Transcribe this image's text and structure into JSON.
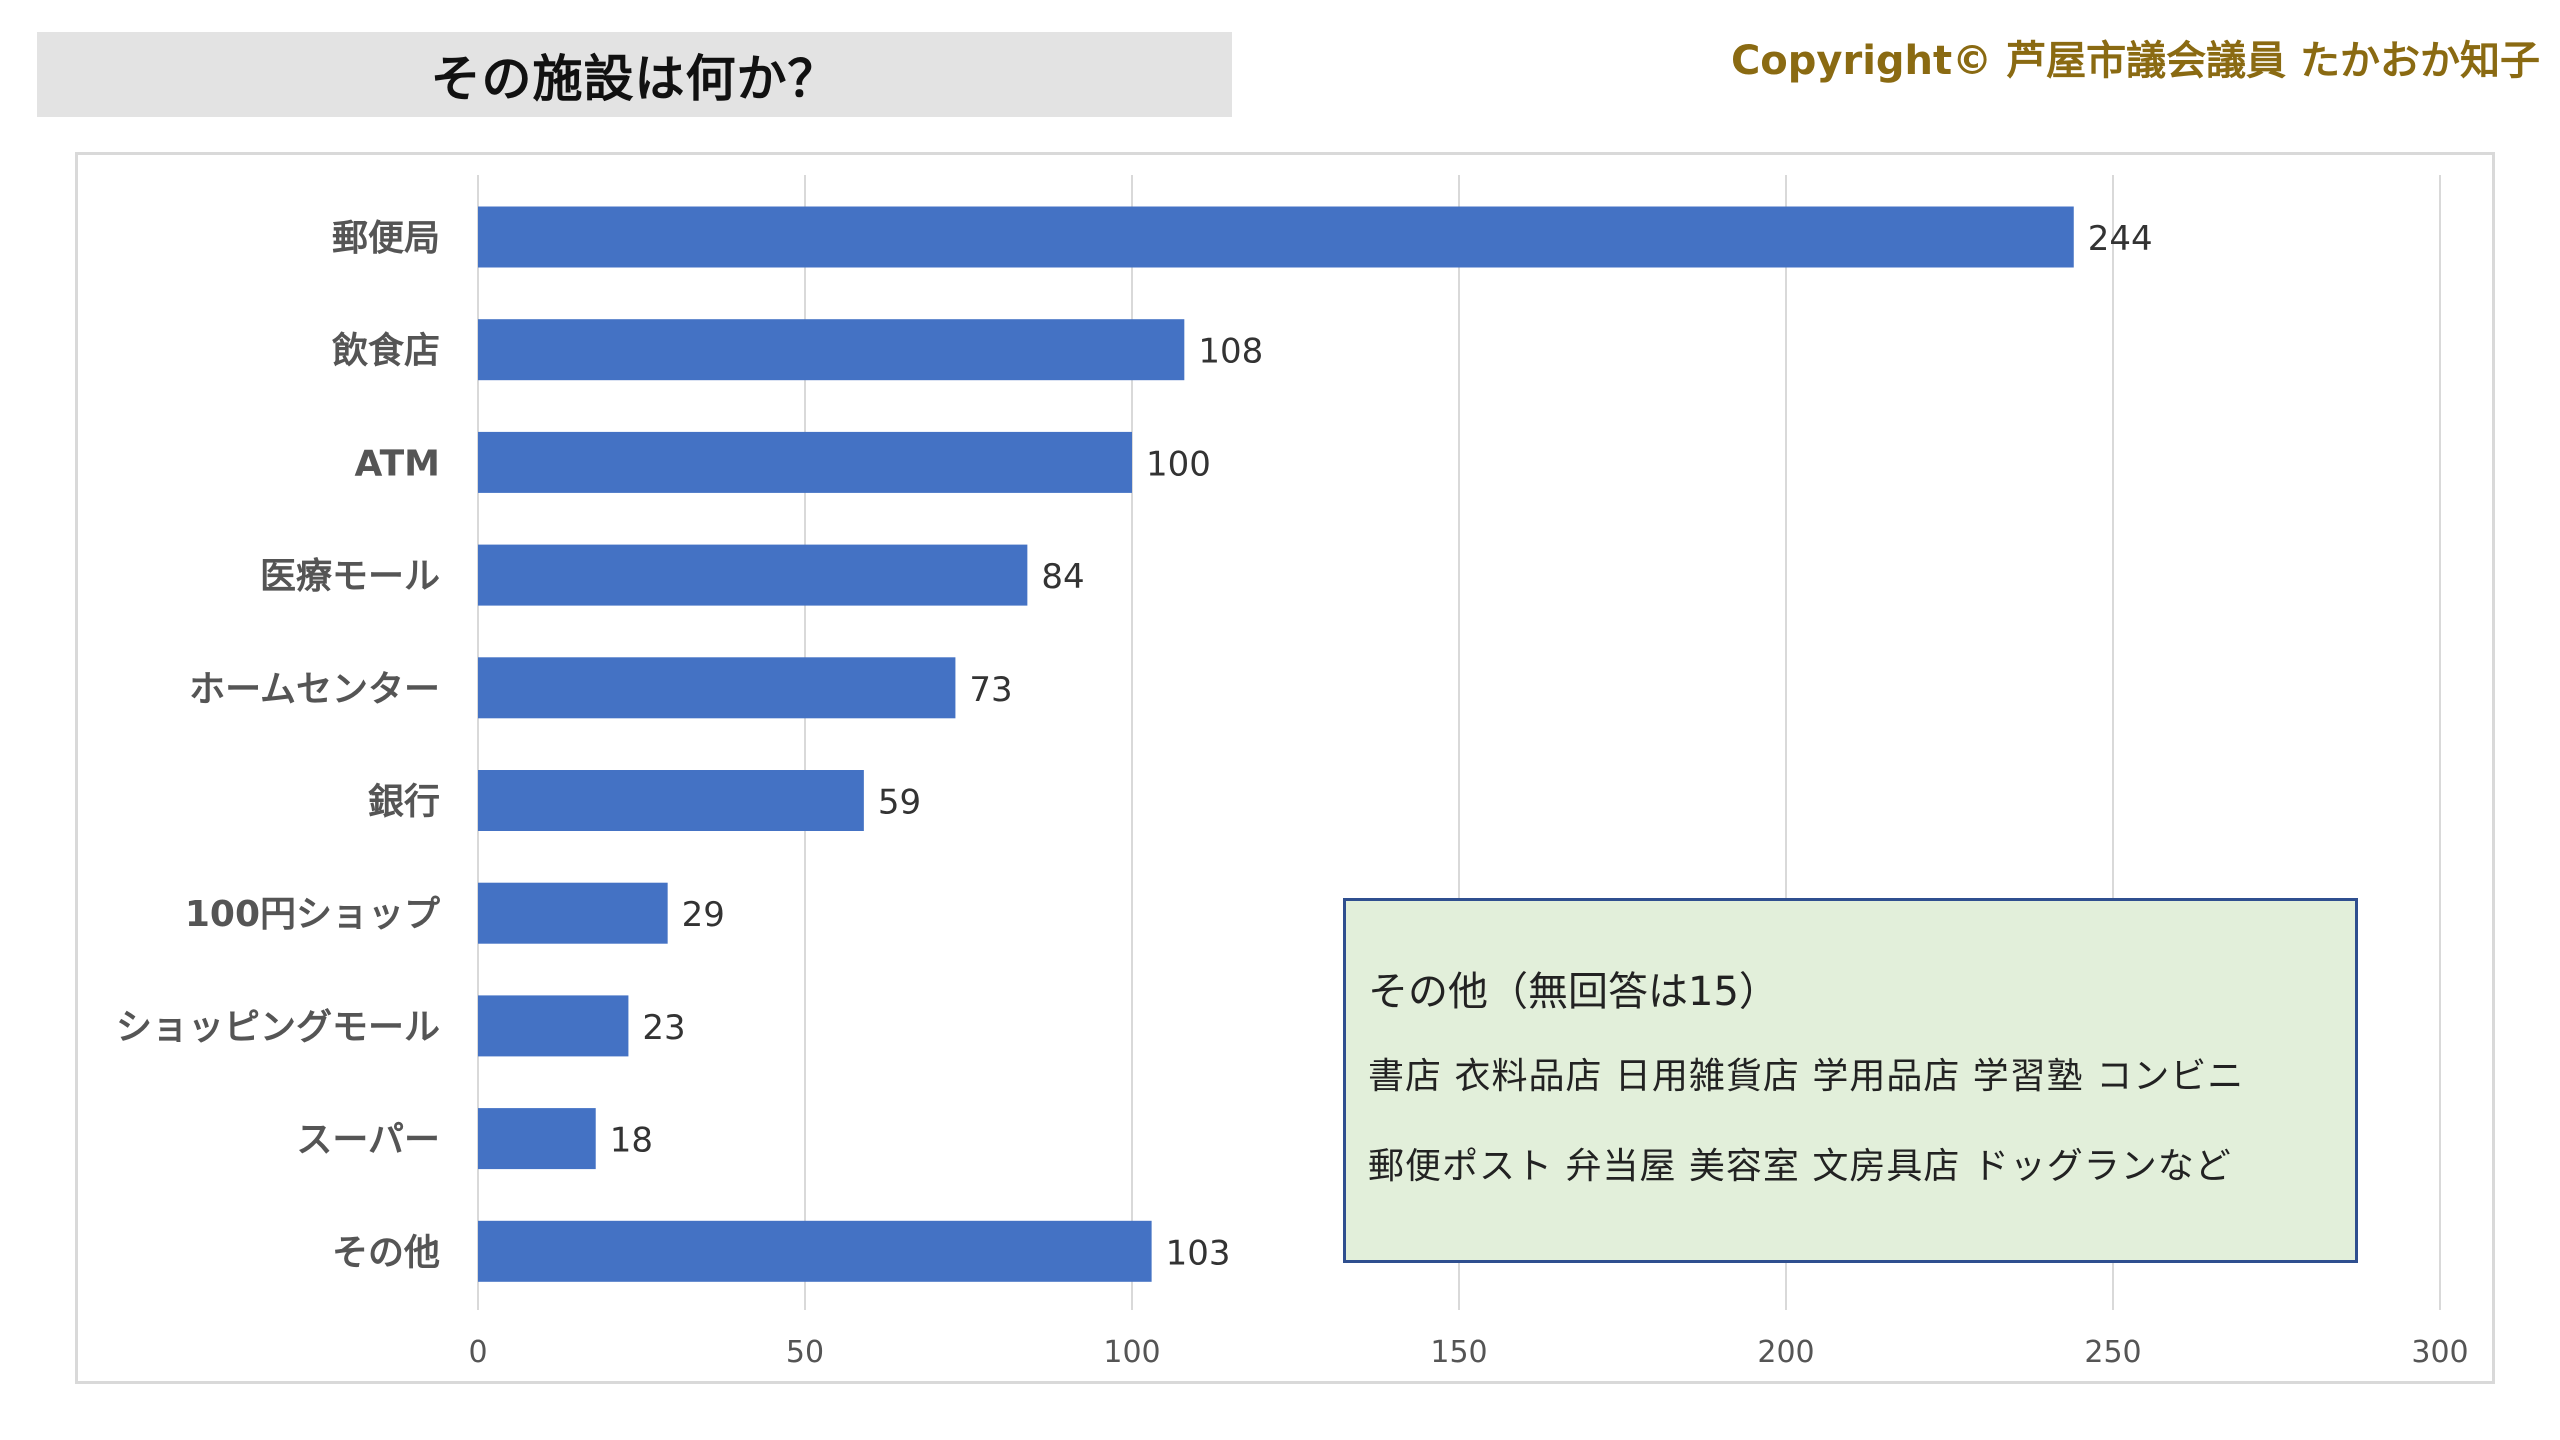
{
  "header": {
    "title": "その施設は何か？",
    "copyright": "Copyright© 芦屋市議会議員 たかおか知子"
  },
  "note": {
    "title": "その他（無回答は15）",
    "line1": "書店  衣料品店  日用雑貨店  学用品店  学習塾  コンビニ",
    "line2": "郵便ポスト 弁当屋   美容室  文房具店  ドッグランなど"
  },
  "chart_data": {
    "type": "bar",
    "orientation": "horizontal",
    "categories": [
      "郵便局",
      "飲食店",
      "ATM",
      "医療モール",
      "ホームセンター",
      "銀行",
      "100円ショップ",
      "ショッピングモール",
      "スーパー",
      "その他"
    ],
    "values": [
      244,
      108,
      100,
      84,
      73,
      59,
      29,
      23,
      18,
      103
    ],
    "xlim": [
      0,
      300
    ],
    "xticks": [
      0,
      50,
      100,
      150,
      200,
      250,
      300
    ],
    "grid": "vertical",
    "bar_color": "#4472c4",
    "data_labels": true
  }
}
